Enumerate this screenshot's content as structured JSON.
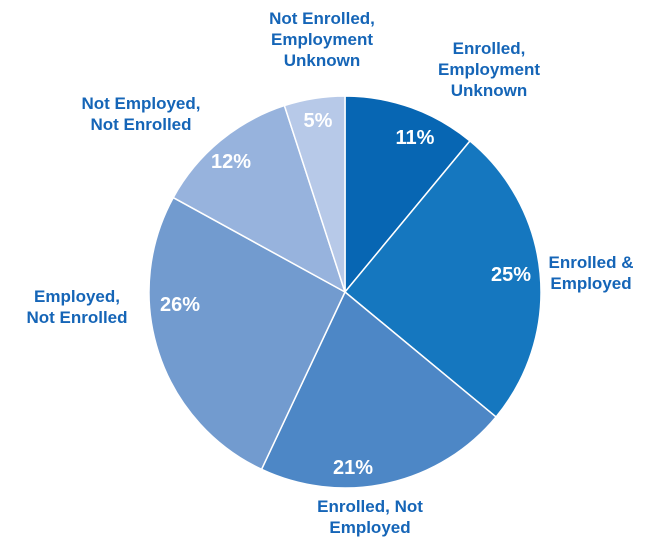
{
  "chart_data": {
    "type": "pie",
    "title": "",
    "slices": [
      {
        "label": "Enrolled, Employment Unknown",
        "lines": [
          "Enrolled,",
          "Employment",
          "Unknown"
        ],
        "value": 11,
        "value_label": "11%",
        "color": "#0766b3"
      },
      {
        "label": "Enrolled & Employed",
        "lines": [
          "Enrolled &",
          "Employed"
        ],
        "value": 25,
        "value_label": "25%",
        "color": "#1577bf"
      },
      {
        "label": "Enrolled, Not Employed",
        "lines": [
          "Enrolled, Not",
          "Employed"
        ],
        "value": 21,
        "value_label": "21%",
        "color": "#4d87c6"
      },
      {
        "label": "Employed, Not Enrolled",
        "lines": [
          "Employed,",
          "Not Enrolled"
        ],
        "value": 26,
        "value_label": "26%",
        "color": "#729bcf"
      },
      {
        "label": "Not Employed, Not Enrolled",
        "lines": [
          "Not Employed,",
          "Not Enrolled"
        ],
        "value": 12,
        "value_label": "12%",
        "color": "#97b3dd"
      },
      {
        "label": "Not Enrolled, Employment Unknown",
        "lines": [
          "Not Enrolled,",
          "Employment",
          "Unknown"
        ],
        "value": 5,
        "value_label": "5%",
        "color": "#b7c9e8"
      }
    ],
    "start_angle_deg": 0,
    "direction": "clockwise",
    "legend": "none",
    "label_color": "#1565b7",
    "value_label_color": "#ffffff",
    "separator_color": "#ffffff"
  }
}
